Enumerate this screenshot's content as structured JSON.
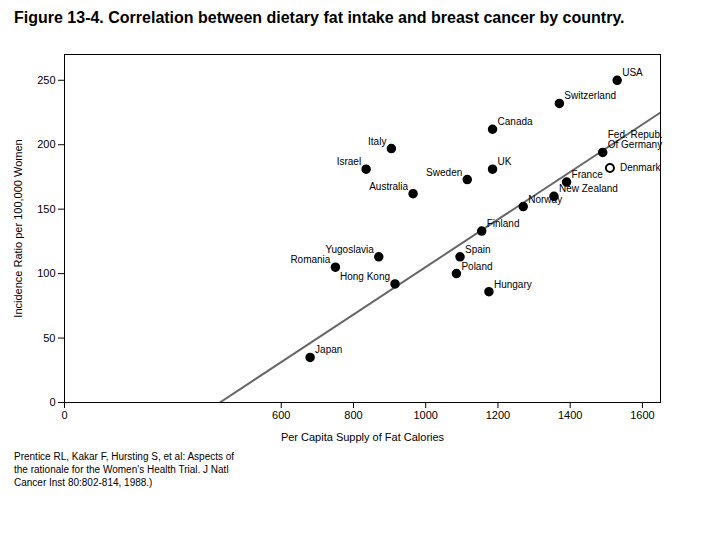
{
  "chart_data": {
    "type": "scatter",
    "title": "Figure 13-4. Correlation between dietary fat intake and breast cancer by country.",
    "xlabel": "Per Capita Supply of Fat Calories",
    "ylabel": "Incidence Ratio per 100,000 Women",
    "x": [
      1530,
      1370,
      1185,
      905,
      835,
      1185,
      1115,
      965,
      1390,
      1355,
      1270,
      1155,
      870,
      1095,
      750,
      1085,
      915,
      1175,
      680,
      1510,
      1490
    ],
    "y": [
      250,
      232,
      212,
      197,
      181,
      181,
      173,
      162,
      171,
      160,
      152,
      133,
      113,
      113,
      105,
      100,
      92,
      86,
      35,
      182,
      194
    ],
    "labels": [
      "USA",
      "Switzerland",
      "Canada",
      "Italy",
      "Israel",
      "UK",
      "Sweden",
      "Australia",
      "France",
      "New Zealand",
      "Norway",
      "Finland",
      "Yugoslavia",
      "Spain",
      "Romania",
      "Poland",
      "Hong Kong",
      "Hungary",
      "Japan",
      "Denmark",
      "Fed. Repub.\nOf Germany"
    ],
    "markers": [
      "filled",
      "filled",
      "filled",
      "filled",
      "filled",
      "filled",
      "filled",
      "filled",
      "filled",
      "filled",
      "filled",
      "filled",
      "filled",
      "filled",
      "filled",
      "filled",
      "filled",
      "filled",
      "filled",
      "open",
      "filled"
    ],
    "label_anchor": [
      "above-right",
      "above-right",
      "above-right",
      "above-left",
      "above-left",
      "above-right",
      "above-left",
      "above-left",
      "above-right",
      "above-right",
      "above-right",
      "above-right",
      "above-left",
      "above-right",
      "above-left",
      "above-right",
      "above-left",
      "above-right",
      "above-right",
      "right",
      "above-right"
    ],
    "regression_line": {
      "x": [
        430,
        1650
      ],
      "y": [
        0,
        225
      ]
    },
    "xlim": [
      0,
      1650
    ],
    "ylim": [
      0,
      270
    ],
    "xticks": [
      0,
      600,
      800,
      1000,
      1200,
      1400,
      1600
    ],
    "yticks": [
      0,
      50,
      100,
      150,
      200,
      250
    ],
    "grid": false,
    "caption": "Prentice RL, Kakar F, Hursting S, et al: Aspects of\nthe rationale for the Women's Health Trial. J Natl\nCancer Inst 80:802-814, 1988.)"
  }
}
